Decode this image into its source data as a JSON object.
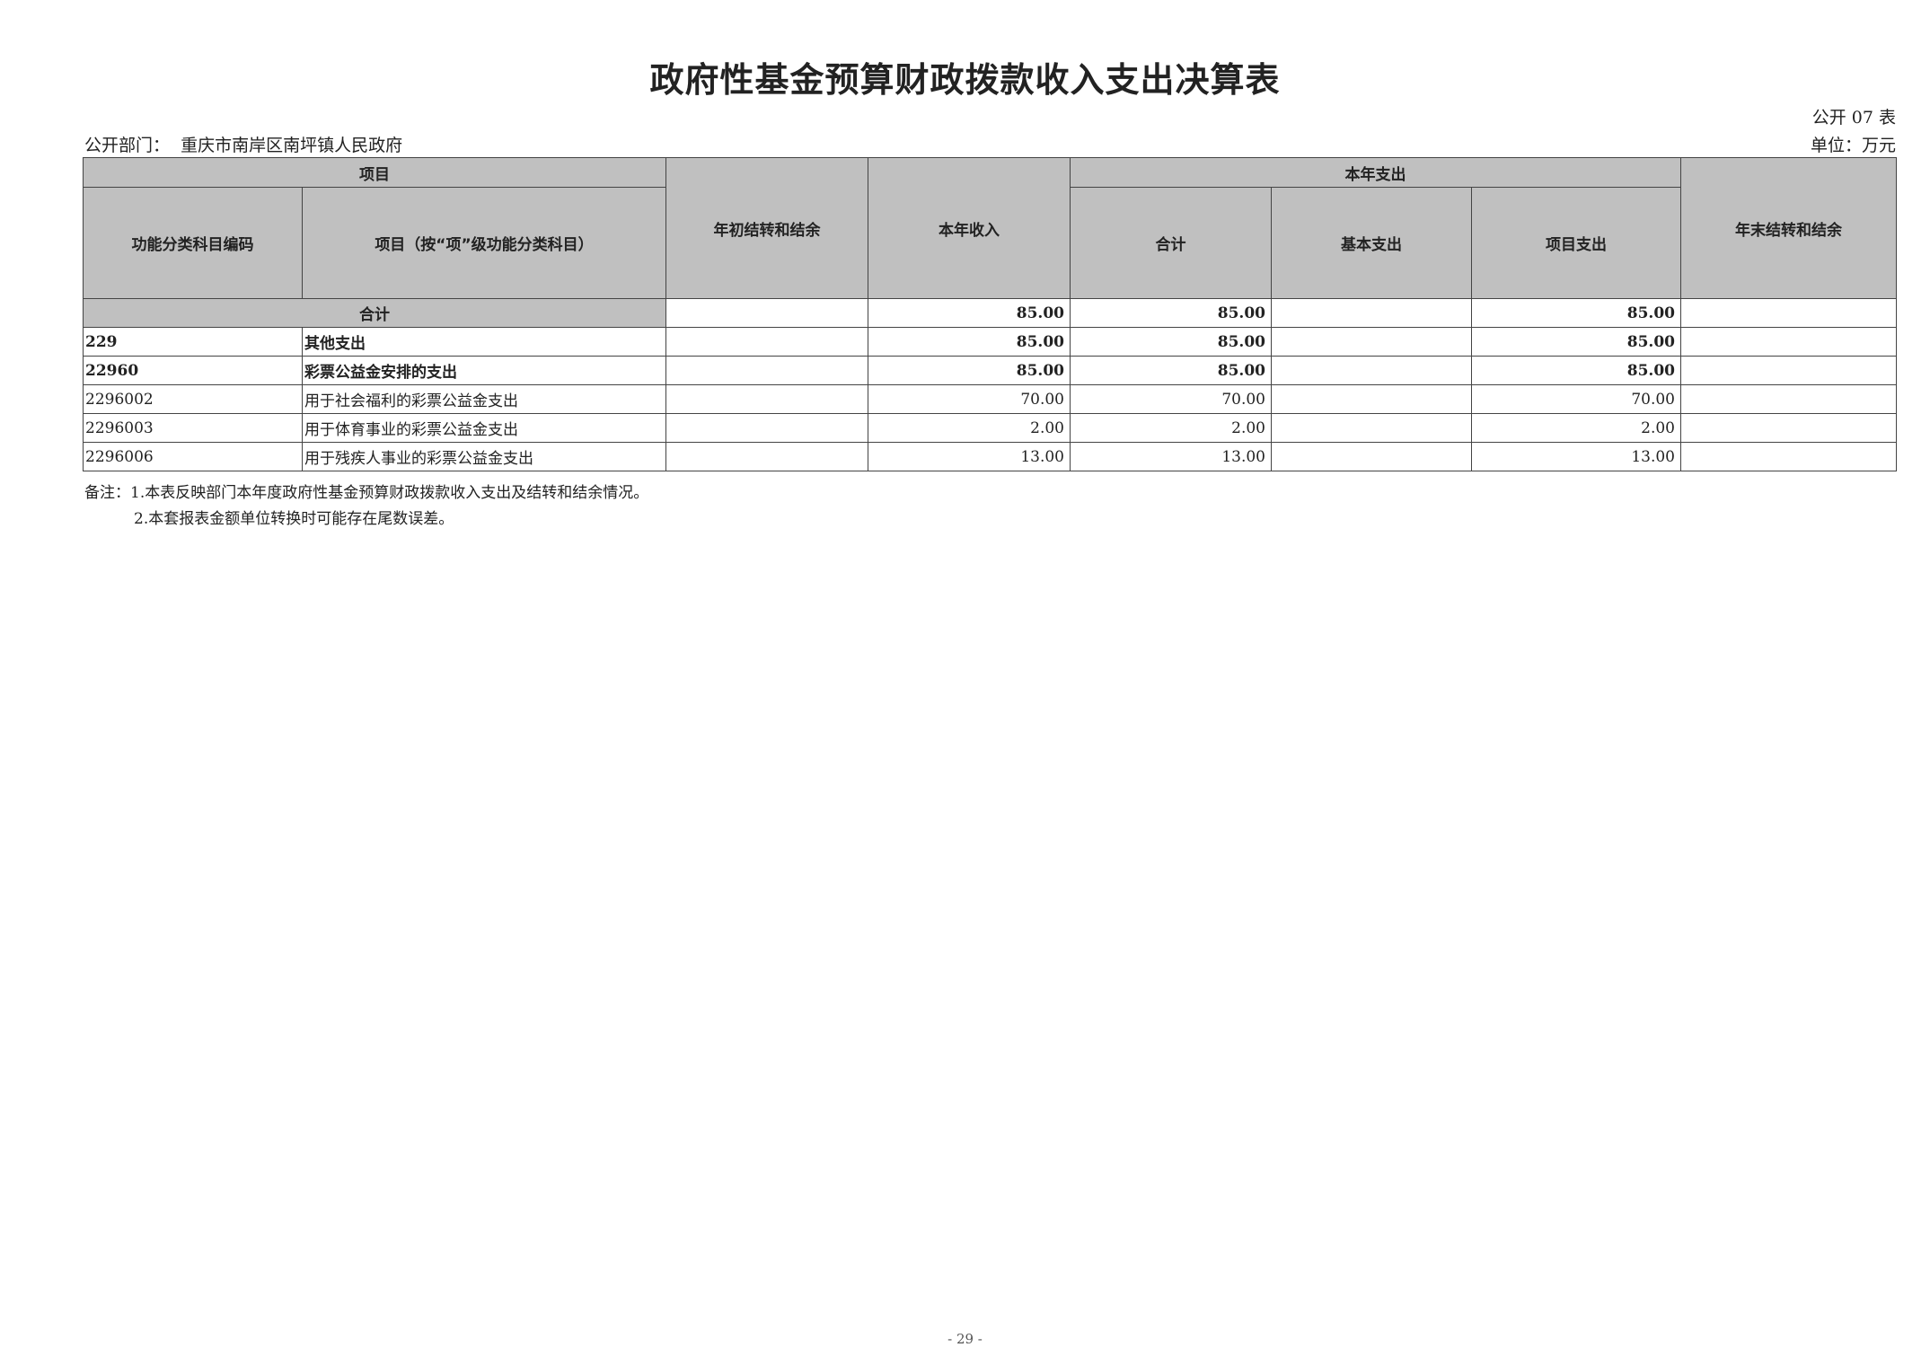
{
  "title": "政府性基金预算财政拨款收入支出决算表",
  "form_no": "公开 07 表",
  "department_label": "公开部门：",
  "department": "重庆市南岸区南坪镇人民政府",
  "unit": "单位：万元",
  "headers": {
    "project": "项目",
    "code": "功能分类科目编码",
    "name": "项目（按“项”级功能分类科目）",
    "begin_balance": "年初结转和结余",
    "income": "本年收入",
    "expense": "本年支出",
    "total": "合计",
    "basic": "基本支出",
    "project_exp": "项目支出",
    "end_balance": "年末结转和结余"
  },
  "total_row": {
    "label": "合计",
    "begin": "",
    "income": "85.00",
    "total": "85.00",
    "basic": "",
    "project": "85.00",
    "end": ""
  },
  "rows": [
    {
      "code": "229",
      "name": "其他支出",
      "begin": "",
      "income": "85.00",
      "total": "85.00",
      "basic": "",
      "project": "85.00",
      "end": ""
    },
    {
      "code": "22960",
      "name": "彩票公益金安排的支出",
      "begin": "",
      "income": "85.00",
      "total": "85.00",
      "basic": "",
      "project": "85.00",
      "end": ""
    },
    {
      "code": "2296002",
      "name": "用于社会福利的彩票公益金支出",
      "begin": "",
      "income": "70.00",
      "total": "70.00",
      "basic": "",
      "project": "70.00",
      "end": ""
    },
    {
      "code": "2296003",
      "name": "用于体育事业的彩票公益金支出",
      "begin": "",
      "income": "2.00",
      "total": "2.00",
      "basic": "",
      "project": "2.00",
      "end": ""
    },
    {
      "code": "2296006",
      "name": "用于残疾人事业的彩票公益金支出",
      "begin": "",
      "income": "13.00",
      "total": "13.00",
      "basic": "",
      "project": "13.00",
      "end": ""
    }
  ],
  "notes": [
    "备注：1.本表反映部门本年度政府性基金预算财政拨款收入支出及结转和结余情况。",
    "2.本套报表金额单位转换时可能存在尾数误差。"
  ],
  "page_number": "- 29 -"
}
